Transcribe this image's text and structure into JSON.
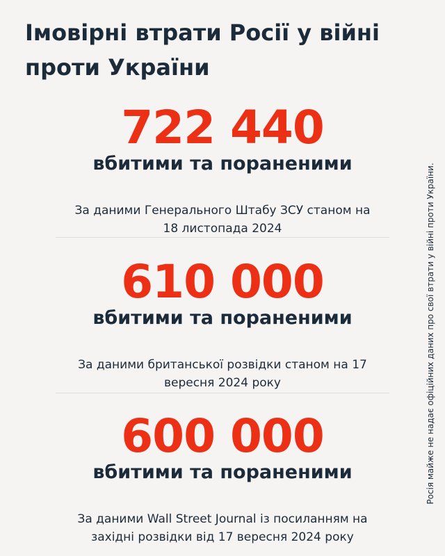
{
  "title": "Імовірні втрати Росії у війні проти України",
  "stats": [
    {
      "number": "722 440",
      "label": "вбитими та пораненими",
      "source": "За даними Генерального Штабу ЗСУ станом на 18 листопада 2024"
    },
    {
      "number": "610 000",
      "label": "вбитими та пораненими",
      "source": "За даними британської розвідки станом на 17 вересня 2024 року"
    },
    {
      "number": "600 000",
      "label": "вбитими та пораненими",
      "source": "За даними Wall Street Journal із посиланням на західні розвідки від 17 вересня 2024 року"
    }
  ],
  "side_note": "Росія майже не надає офіційних даних про свої втрати у війні проти України.",
  "colors": {
    "background": "#f6f4f3",
    "accent": "#ec3016",
    "text": "#1c2b3a"
  }
}
